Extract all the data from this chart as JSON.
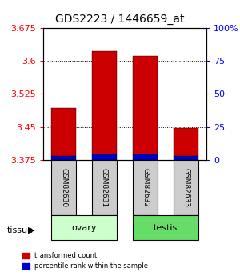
{
  "title": "GDS2223 / 1446659_at",
  "samples": [
    "GSM82630",
    "GSM82631",
    "GSM82632",
    "GSM82633"
  ],
  "transformed_counts": [
    3.493,
    3.622,
    3.61,
    3.447
  ],
  "percentile_ranks": [
    0.018,
    0.018,
    0.018,
    0.018
  ],
  "baseline": 3.375,
  "ylim_left": [
    3.375,
    3.675
  ],
  "ylim_right": [
    0,
    100
  ],
  "yticks_left": [
    3.375,
    3.45,
    3.525,
    3.6,
    3.675
  ],
  "yticks_right": [
    0,
    25,
    50,
    75,
    100
  ],
  "ytick_labels_left": [
    "3.375",
    "3.45",
    "3.525",
    "3.6",
    "3.675"
  ],
  "ytick_labels_right": [
    "0",
    "25",
    "50",
    "75",
    "100%"
  ],
  "bar_width": 0.6,
  "red_color": "#cc0000",
  "blue_color": "#0000cc",
  "bar_edge_color": "#000000",
  "tissue_groups": [
    {
      "label": "ovary",
      "samples": [
        "GSM82630",
        "GSM82631"
      ],
      "color": "#ccffcc"
    },
    {
      "label": "testis",
      "samples": [
        "GSM82632",
        "GSM82633"
      ],
      "color": "#66dd66"
    }
  ],
  "grid_color": "#000000",
  "grid_style": "dotted",
  "sample_box_color": "#cccccc",
  "legend_red_label": "transformed count",
  "legend_blue_label": "percentile rank within the sample",
  "tissue_label": "tissue",
  "percentile_values": [
    3,
    4,
    4,
    3
  ]
}
